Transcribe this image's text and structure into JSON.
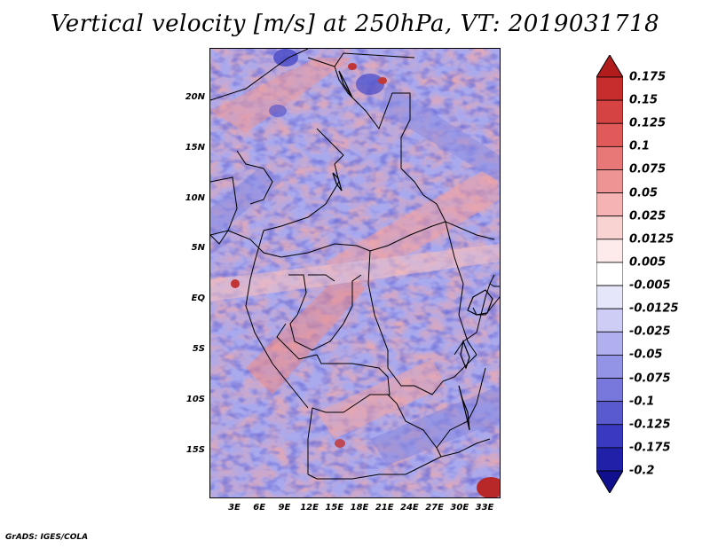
{
  "title": "Vertical velocity [m/s] at 250hPa, VT: 2019031718",
  "footer": "GrADS: IGES/COLA",
  "lat_ticks": [
    "20N",
    "15N",
    "10N",
    "5N",
    "EQ",
    "5S",
    "10S",
    "15S"
  ],
  "lon_ticks": [
    "3E",
    "6E",
    "9E",
    "12E",
    "15E",
    "18E",
    "21E",
    "24E",
    "27E",
    "30E",
    "33E"
  ],
  "colorbar": {
    "labels": [
      "0.175",
      "0.15",
      "0.125",
      "0.1",
      "0.075",
      "0.05",
      "0.025",
      "0.0125",
      "0.005",
      "-0.005",
      "-0.0125",
      "-0.025",
      "-0.05",
      "-0.075",
      "-0.1",
      "-0.125",
      "-0.175",
      "-0.2"
    ],
    "colors": [
      "#b11d1d",
      "#c62d2d",
      "#d54343",
      "#e05a5a",
      "#e87878",
      "#ef9494",
      "#f5b3b3",
      "#f9d2d2",
      "#fdeaea",
      "#ffffff",
      "#e6e6fb",
      "#cdcdf5",
      "#b0b0ef",
      "#9494e6",
      "#7777dc",
      "#5a5acf",
      "#3a3ac0",
      "#2020a8",
      "#10108e"
    ]
  },
  "map": {
    "field": "vertical velocity",
    "level": "250hPa",
    "valid_time": "2019031718",
    "lon_range_deg": [
      0,
      35
    ],
    "lat_range_deg": [
      -20,
      24
    ]
  }
}
